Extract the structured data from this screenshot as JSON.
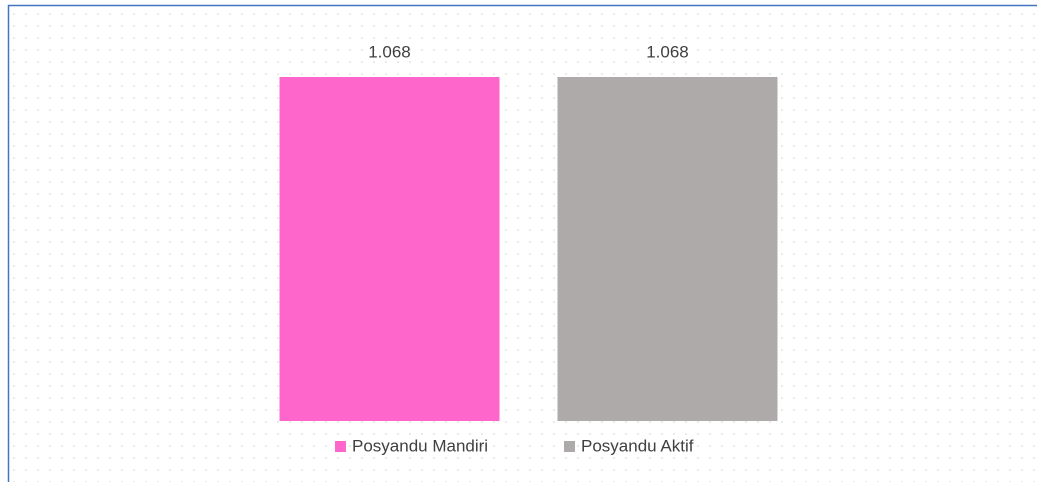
{
  "chart_data": {
    "type": "bar",
    "categories": [
      null
    ],
    "series": [
      {
        "name": "Posyandu Mandiri",
        "color": "#ff66cc",
        "values": [
          1068
        ],
        "value_labels": [
          "1.068"
        ]
      },
      {
        "name": "Posyandu Aktif",
        "color": "#aeaaaa",
        "values": [
          1068
        ],
        "value_labels": [
          "1.068"
        ]
      }
    ],
    "legend": "bottom"
  }
}
